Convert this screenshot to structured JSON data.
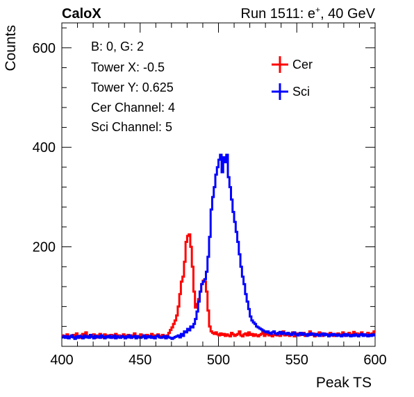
{
  "header": {
    "left_label": "CaloX",
    "right_label_prefix": "Run 1511: e",
    "right_label_sup": "+",
    "right_label_suffix": ", 40 GeV"
  },
  "info_box": {
    "lines": [
      "B: 0, G: 2",
      "Tower X: -0.5",
      "Tower Y: 0.625",
      "Cer Channel: 4",
      "Sci Channel: 5"
    ]
  },
  "colors": {
    "cer": "#ff0000",
    "sci": "#0000ff",
    "axis": "#000000"
  },
  "chart_data": {
    "type": "line",
    "xlabel": "Peak TS",
    "ylabel": "Counts",
    "xlim": [
      400,
      600
    ],
    "ylim": [
      0,
      650
    ],
    "x_ticks": [
      400,
      450,
      500,
      550,
      600
    ],
    "y_ticks": [
      200,
      400,
      600
    ],
    "grid": false,
    "legend_position": "top-right",
    "bin_width": 1,
    "series": [
      {
        "name": "Cer",
        "color": "#ff0000",
        "x": [
          400,
          401,
          402,
          403,
          404,
          405,
          406,
          407,
          408,
          409,
          410,
          411,
          412,
          413,
          414,
          415,
          416,
          417,
          418,
          419,
          420,
          421,
          422,
          423,
          424,
          425,
          426,
          427,
          428,
          429,
          430,
          431,
          432,
          433,
          434,
          435,
          436,
          437,
          438,
          439,
          440,
          441,
          442,
          443,
          444,
          445,
          446,
          447,
          448,
          449,
          450,
          451,
          452,
          453,
          454,
          455,
          456,
          457,
          458,
          459,
          460,
          461,
          462,
          463,
          464,
          465,
          466,
          467,
          468,
          469,
          470,
          471,
          472,
          473,
          474,
          475,
          476,
          477,
          478,
          479,
          480,
          481,
          482,
          483,
          484,
          485,
          486,
          487,
          488,
          489,
          490,
          491,
          492,
          493,
          494,
          495,
          496,
          497,
          498,
          499,
          500,
          501,
          502,
          503,
          504,
          505,
          506,
          507,
          508,
          509,
          510,
          511,
          512,
          513,
          514,
          515,
          516,
          517,
          518,
          519,
          520,
          521,
          522,
          523,
          524,
          525,
          526,
          527,
          528,
          529,
          530,
          531,
          532,
          533,
          534,
          535,
          536,
          537,
          538,
          539,
          540,
          541,
          542,
          543,
          544,
          545,
          546,
          547,
          548,
          549,
          550,
          551,
          552,
          553,
          554,
          555,
          556,
          557,
          558,
          559,
          560,
          561,
          562,
          563,
          564,
          565,
          566,
          567,
          568,
          569,
          570,
          571,
          572,
          573,
          574,
          575,
          576,
          577,
          578,
          579,
          580,
          581,
          582,
          583,
          584,
          585,
          586,
          587,
          588,
          589,
          590,
          591,
          592,
          593,
          594,
          595,
          596,
          597,
          598,
          599
        ],
        "values": [
          22,
          20,
          18,
          24,
          17,
          21,
          19,
          23,
          18,
          26,
          20,
          17,
          22,
          25,
          19,
          28,
          21,
          18,
          23,
          20,
          24,
          17,
          22,
          19,
          25,
          21,
          18,
          24,
          20,
          22,
          19,
          23,
          17,
          21,
          25,
          18,
          22,
          20,
          19,
          24,
          21,
          18,
          23,
          20,
          17,
          22,
          26,
          19,
          21,
          18,
          24,
          20,
          22,
          17,
          23,
          19,
          21,
          25,
          18,
          22,
          20,
          24,
          19,
          21,
          23,
          18,
          20,
          22,
          27,
          33,
          38,
          45,
          52,
          62,
          80,
          105,
          130,
          140,
          170,
          210,
          222,
          225,
          200,
          160,
          110,
          78,
          85,
          95,
          110,
          125,
          132,
          130,
          110,
          72,
          40,
          30,
          27,
          25,
          28,
          24,
          22,
          26,
          23,
          25,
          21,
          24,
          22,
          20,
          27,
          24,
          21,
          23,
          25,
          30,
          22,
          20,
          24,
          26,
          22,
          28,
          23,
          25,
          21,
          24,
          22,
          20,
          23,
          25,
          28,
          21,
          24,
          30,
          22,
          26,
          20,
          23,
          25,
          22,
          27,
          21,
          24,
          30,
          22,
          26,
          23,
          21,
          25,
          28,
          20,
          24,
          26,
          22,
          25,
          23,
          27,
          21,
          24,
          22,
          30,
          23,
          26,
          20,
          25,
          22,
          28,
          24,
          21,
          26,
          23,
          25,
          22,
          27,
          24,
          21,
          25,
          23,
          26,
          22,
          24,
          28,
          21,
          25,
          23,
          27,
          22,
          24,
          29,
          23,
          26,
          21,
          25,
          28,
          23,
          24,
          22,
          27,
          25,
          23,
          26,
          30
        ]
      },
      {
        "name": "Sci",
        "color": "#0000ff",
        "x": [
          400,
          401,
          402,
          403,
          404,
          405,
          406,
          407,
          408,
          409,
          410,
          411,
          412,
          413,
          414,
          415,
          416,
          417,
          418,
          419,
          420,
          421,
          422,
          423,
          424,
          425,
          426,
          427,
          428,
          429,
          430,
          431,
          432,
          433,
          434,
          435,
          436,
          437,
          438,
          439,
          440,
          441,
          442,
          443,
          444,
          445,
          446,
          447,
          448,
          449,
          450,
          451,
          452,
          453,
          454,
          455,
          456,
          457,
          458,
          459,
          460,
          461,
          462,
          463,
          464,
          465,
          466,
          467,
          468,
          469,
          470,
          471,
          472,
          473,
          474,
          475,
          476,
          477,
          478,
          479,
          480,
          481,
          482,
          483,
          484,
          485,
          486,
          487,
          488,
          489,
          490,
          491,
          492,
          493,
          494,
          495,
          496,
          497,
          498,
          499,
          500,
          501,
          502,
          503,
          504,
          505,
          506,
          507,
          508,
          509,
          510,
          511,
          512,
          513,
          514,
          515,
          516,
          517,
          518,
          519,
          520,
          521,
          522,
          523,
          524,
          525,
          526,
          527,
          528,
          529,
          530,
          531,
          532,
          533,
          534,
          535,
          536,
          537,
          538,
          539,
          540,
          541,
          542,
          543,
          544,
          545,
          546,
          547,
          548,
          549,
          550,
          551,
          552,
          553,
          554,
          555,
          556,
          557,
          558,
          559,
          560,
          561,
          562,
          563,
          564,
          565,
          566,
          567,
          568,
          569,
          570,
          571,
          572,
          573,
          574,
          575,
          576,
          577,
          578,
          579,
          580,
          581,
          582,
          583,
          584,
          585,
          586,
          587,
          588,
          589,
          590,
          591,
          592,
          593,
          594,
          595,
          596,
          597,
          598,
          599
        ],
        "values": [
          18,
          21,
          17,
          20,
          16,
          19,
          22,
          18,
          15,
          20,
          17,
          21,
          19,
          16,
          22,
          18,
          20,
          17,
          23,
          19,
          16,
          21,
          18,
          20,
          17,
          22,
          19,
          16,
          20,
          18,
          21,
          17,
          19,
          22,
          16,
          20,
          18,
          17,
          21,
          19,
          16,
          20,
          18,
          22,
          17,
          19,
          21,
          16,
          20,
          18,
          17,
          19,
          22,
          16,
          20,
          18,
          21,
          17,
          19,
          16,
          20,
          22,
          18,
          17,
          19,
          21,
          16,
          20,
          18,
          17,
          15,
          17,
          19,
          20,
          22,
          18,
          25,
          21,
          30,
          28,
          35,
          32,
          40,
          38,
          45,
          55,
          70,
          90,
          110,
          125,
          130,
          135,
          150,
          180,
          220,
          275,
          300,
          320,
          345,
          360,
          375,
          385,
          350,
          380,
          370,
          385,
          340,
          320,
          295,
          270,
          250,
          230,
          210,
          185,
          160,
          140,
          125,
          105,
          90,
          75,
          60,
          52,
          48,
          45,
          40,
          38,
          36,
          34,
          32,
          30,
          28,
          30,
          27,
          25,
          28,
          30,
          26,
          24,
          27,
          29,
          25,
          28,
          26,
          24,
          27,
          25,
          23,
          26,
          28,
          24,
          22,
          25,
          27,
          23,
          26,
          24,
          21,
          25,
          23,
          26,
          24,
          22,
          25,
          23,
          21,
          24,
          26,
          22,
          25,
          23,
          20,
          24,
          22,
          25,
          23,
          21,
          24,
          22,
          20,
          23,
          25,
          21,
          24,
          22,
          20,
          23,
          21,
          24,
          22,
          20,
          23,
          25,
          21,
          24,
          22,
          20,
          23,
          21,
          24,
          22
        ]
      }
    ]
  }
}
